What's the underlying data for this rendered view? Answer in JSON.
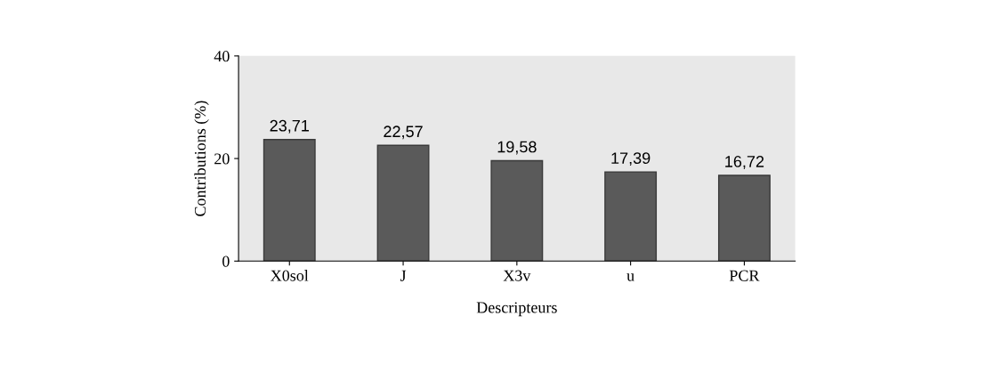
{
  "chart_data": {
    "type": "bar",
    "xlabel": "Descripteurs",
    "ylabel": "Contributions (%)",
    "categories": [
      "X0sol",
      "J",
      "X3v",
      "u",
      "PCR"
    ],
    "values": [
      23.71,
      22.57,
      19.58,
      17.39,
      16.72
    ],
    "value_labels": [
      "23,71",
      "22,57",
      "19,58",
      "17,39",
      "16,72"
    ],
    "color": "#5a5a5a",
    "ylim": [
      0,
      40
    ],
    "yticks": [
      0,
      20,
      40
    ],
    "grid": false,
    "legend": false
  }
}
